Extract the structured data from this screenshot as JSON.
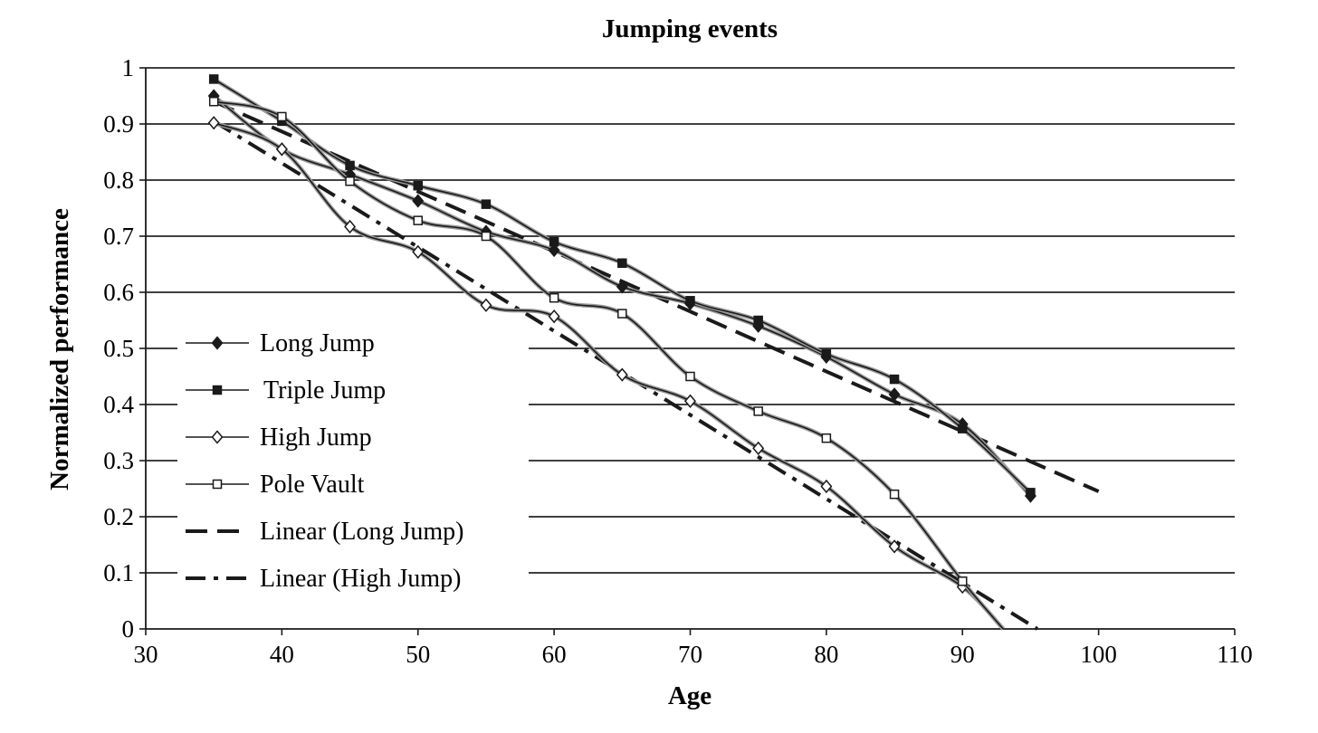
{
  "chart_data": {
    "type": "line",
    "title": "Jumping events",
    "xlabel": "Age",
    "ylabel": "Normalized performance",
    "xlim": [
      30,
      110
    ],
    "ylim": [
      0,
      1
    ],
    "x_ticks": [
      "30",
      "40",
      "50",
      "60",
      "70",
      "80",
      "90",
      "100",
      "110"
    ],
    "y_ticks": [
      "0",
      "0.1",
      "0.2",
      "0.3",
      "0.4",
      "0.5",
      "0.6",
      "0.7",
      "0.8",
      "0.9",
      "1"
    ],
    "grid": "horizontal",
    "legend_position": "left",
    "x": [
      35,
      40,
      45,
      50,
      55,
      60,
      65,
      70,
      75,
      80,
      85,
      90,
      95
    ],
    "series": [
      {
        "name": "Long Jump",
        "marker": "filled-diamond",
        "values": [
          0.95,
          0.855,
          0.81,
          0.763,
          0.708,
          0.675,
          0.61,
          0.58,
          0.54,
          0.485,
          0.418,
          0.365,
          0.237
        ]
      },
      {
        "name": "Triple Jump",
        "marker": "filled-square",
        "values": [
          0.98,
          0.905,
          0.826,
          0.79,
          0.757,
          0.69,
          0.652,
          0.585,
          0.55,
          0.49,
          0.445,
          0.357,
          0.243
        ]
      },
      {
        "name": "High Jump",
        "marker": "open-diamond",
        "values": [
          0.902,
          0.855,
          0.717,
          0.672,
          0.577,
          0.557,
          0.453,
          0.406,
          0.322,
          0.254,
          0.147,
          0.075,
          null
        ]
      },
      {
        "name": "Pole Vault",
        "marker": "open-square",
        "values": [
          0.94,
          0.913,
          0.798,
          0.728,
          0.7,
          0.59,
          0.562,
          0.45,
          0.388,
          0.34,
          0.24,
          0.085,
          null
        ]
      }
    ],
    "trendlines": [
      {
        "name": "Linear (Long Jump)",
        "style": "dashed",
        "x": [
          35,
          100
        ],
        "y": [
          0.94,
          0.245
        ]
      },
      {
        "name": "Linear (High Jump)",
        "style": "dash-dot",
        "x": [
          35,
          95.5
        ],
        "y": [
          0.905,
          0
        ]
      }
    ],
    "colors": {
      "line": "#1a1a1a",
      "grid": "#000000",
      "background": "#ffffff"
    }
  }
}
